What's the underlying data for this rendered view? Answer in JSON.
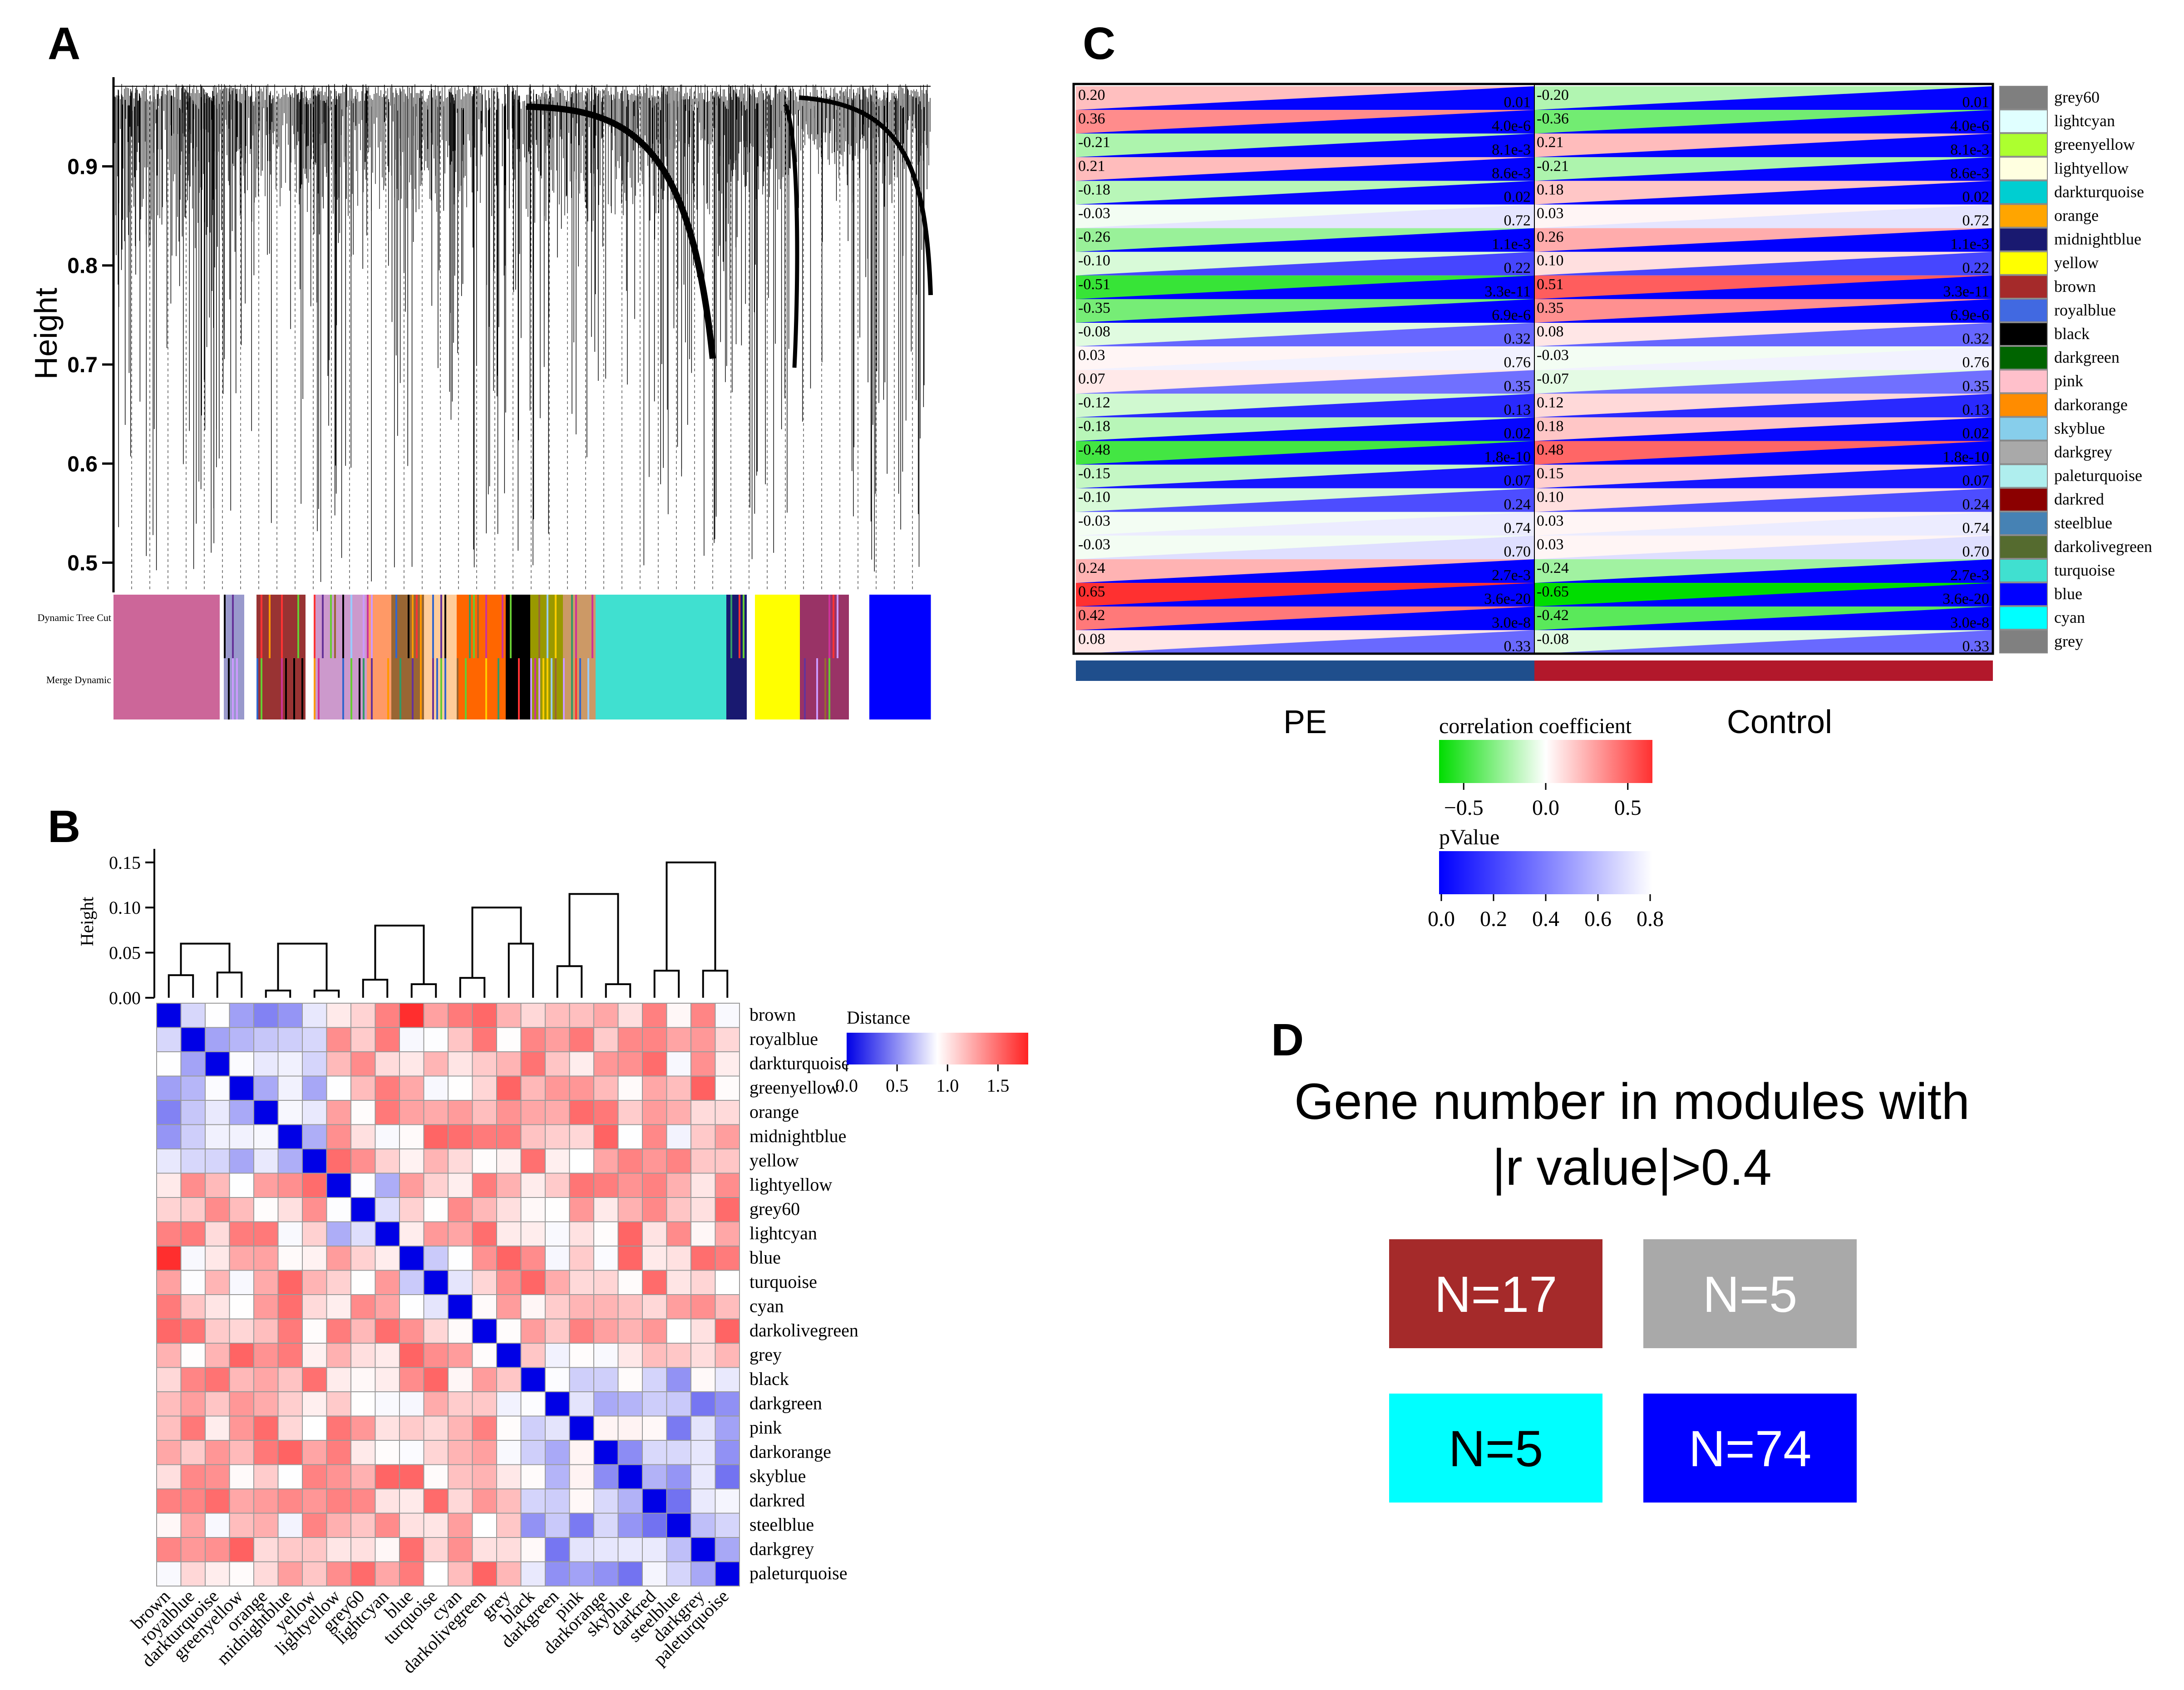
{
  "panels": {
    "a": {
      "letter": "A",
      "ylabel": "Height",
      "yticks": [
        0.5,
        0.6,
        0.7,
        0.8,
        0.9
      ],
      "ylim": [
        0.47,
        0.99
      ],
      "row_labels": [
        "Dynamic Tree Cut",
        "Merge Dynamic"
      ],
      "blocks": [
        {
          "from": 0.0,
          "to": 0.13,
          "color": "#cc6699"
        },
        {
          "from": 0.13,
          "to": 0.135,
          "color": "#ffffff"
        },
        {
          "from": 0.135,
          "to": 0.16,
          "color": "#9999cc"
        },
        {
          "from": 0.16,
          "to": 0.175,
          "color": "#ffffff"
        },
        {
          "from": 0.175,
          "to": 0.235,
          "color": "#993333"
        },
        {
          "from": 0.235,
          "to": 0.245,
          "color": "#ffffff"
        },
        {
          "from": 0.245,
          "to": 0.31,
          "color": "#cc99cc"
        },
        {
          "from": 0.31,
          "to": 0.34,
          "color": "#ff9966"
        },
        {
          "from": 0.34,
          "to": 0.38,
          "color": "#996633"
        },
        {
          "from": 0.38,
          "to": 0.42,
          "color": "#ffcc99"
        },
        {
          "from": 0.42,
          "to": 0.48,
          "color": "#ff6600"
        },
        {
          "from": 0.48,
          "to": 0.51,
          "color": "#000000"
        },
        {
          "from": 0.51,
          "to": 0.55,
          "color": "#999900"
        },
        {
          "from": 0.55,
          "to": 0.59,
          "color": "#cc9966"
        },
        {
          "from": 0.59,
          "to": 0.75,
          "color": "#40e0d0"
        },
        {
          "from": 0.75,
          "to": 0.775,
          "color": "#191970"
        },
        {
          "from": 0.775,
          "to": 0.785,
          "color": "#ffffff"
        },
        {
          "from": 0.785,
          "to": 0.84,
          "color": "#ffff00"
        },
        {
          "from": 0.84,
          "to": 0.9,
          "color": "#993366"
        },
        {
          "from": 0.9,
          "to": 0.925,
          "color": "#ffffff"
        },
        {
          "from": 0.925,
          "to": 1.0,
          "color": "#0000ff"
        }
      ]
    },
    "b": {
      "letter": "B",
      "ylabel": "Height",
      "yticks": [
        0.0,
        0.05,
        0.1,
        0.15
      ],
      "legend_title": "Distance",
      "legend_ticks": [
        0.0,
        0.5,
        1.0,
        1.5
      ],
      "legend_max": 1.8,
      "modules": [
        "brown",
        "royalblue",
        "darkturquoise",
        "greenyellow",
        "orange",
        "midnightblue",
        "yellow",
        "lightyellow",
        "grey60",
        "lightcyan",
        "blue",
        "turquoise",
        "cyan",
        "darkolivegreen",
        "grey",
        "black",
        "darkgreen",
        "pink",
        "darkorange",
        "skyblue",
        "darkred",
        "steelblue",
        "darkgrey",
        "paleturquoise"
      ],
      "dendrogram_merges": [
        [
          0,
          1,
          0.025
        ],
        [
          2,
          3,
          0.028
        ],
        [
          4,
          5,
          0.008
        ],
        [
          6,
          7,
          0.008
        ],
        [
          8,
          9,
          0.02
        ],
        [
          10,
          11,
          0.015
        ],
        [
          12,
          13,
          0.022
        ],
        [
          14,
          15,
          0.06
        ],
        [
          16,
          17,
          0.035
        ],
        [
          18,
          19,
          0.015
        ],
        [
          20,
          21,
          0.03
        ],
        [
          22,
          23,
          0.03
        ],
        [
          24,
          25,
          0.06
        ],
        [
          26,
          27,
          0.06
        ],
        [
          28,
          29,
          0.08
        ],
        [
          30,
          31,
          0.1
        ],
        [
          32,
          33,
          0.115
        ],
        [
          34,
          35,
          0.15
        ]
      ]
    },
    "c": {
      "letter": "C",
      "columns": [
        "PE",
        "Control"
      ],
      "column_colors": [
        "#1f4e8c",
        "#b2182b"
      ],
      "cor_legend_title": "correlation coefficient",
      "cor_ticks": [
        "−0.5",
        "0.0",
        "0.5"
      ],
      "p_legend_title": "pValue",
      "p_ticks": [
        "0.0",
        "0.2",
        "0.4",
        "0.6",
        "0.8"
      ]
    },
    "d": {
      "letter": "D",
      "title_line1": "Gene number in modules with",
      "title_line2": "|r value|>0.4",
      "boxes": [
        {
          "label": "N=17",
          "color": "#a52a2a",
          "text_color": "#ffffff"
        },
        {
          "label": "N=5",
          "color": "#a9a9a9",
          "text_color": "#ffffff"
        },
        {
          "label": "N=5",
          "color": "#00ffff",
          "text_color": "#000000"
        },
        {
          "label": "N=74",
          "color": "#0000ff",
          "text_color": "#ffffff"
        }
      ]
    }
  },
  "chart_data": [
    {
      "type": "dendrogram",
      "ylabel": "Height",
      "ylim": [
        0.47,
        0.99
      ],
      "row_labels": [
        "Dynamic Tree Cut",
        "Merge Dynamic"
      ]
    },
    {
      "type": "heatmap",
      "legend_title": "Distance",
      "categories": [
        "brown",
        "royalblue",
        "darkturquoise",
        "greenyellow",
        "orange",
        "midnightblue",
        "yellow",
        "lightyellow",
        "grey60",
        "lightcyan",
        "blue",
        "turquoise",
        "cyan",
        "darkolivegreen",
        "grey",
        "black",
        "darkgreen",
        "pink",
        "darkorange",
        "skyblue",
        "darkred",
        "steelblue",
        "darkgrey",
        "paleturquoise"
      ],
      "value_range": [
        0,
        1.8
      ],
      "dendrogram_ylim": [
        0,
        0.17
      ]
    },
    {
      "type": "heatmap",
      "columns": [
        "PE",
        "Control"
      ],
      "rows": [
        {
          "module": "grey60",
          "color": "#7f7f7f",
          "r": 0.2,
          "p": "0.01",
          "pv": 0.01
        },
        {
          "module": "lightcyan",
          "color": "#e0ffff",
          "r": 0.36,
          "p": "4.0e-6",
          "pv": 0.0
        },
        {
          "module": "greenyellow",
          "color": "#adff2f",
          "r": -0.21,
          "p": "8.1e-3",
          "pv": 0.008
        },
        {
          "module": "lightyellow",
          "color": "#ffffe0",
          "r": 0.21,
          "p": "8.6e-3",
          "pv": 0.009
        },
        {
          "module": "darkturquoise",
          "color": "#00ced1",
          "r": -0.18,
          "p": "0.02",
          "pv": 0.02
        },
        {
          "module": "orange",
          "color": "#ffa500",
          "r": -0.03,
          "p": "0.72",
          "pv": 0.72
        },
        {
          "module": "midnightblue",
          "color": "#191970",
          "r": -0.26,
          "p": "1.1e-3",
          "pv": 0.001
        },
        {
          "module": "yellow",
          "color": "#ffff00",
          "r": -0.1,
          "p": "0.22",
          "pv": 0.22
        },
        {
          "module": "brown",
          "color": "#a52a2a",
          "r": -0.51,
          "p": "3.3e-11",
          "pv": 0.0
        },
        {
          "module": "royalblue",
          "color": "#4169e1",
          "r": -0.35,
          "p": "6.9e-6",
          "pv": 0.0
        },
        {
          "module": "black",
          "color": "#000000",
          "r": -0.08,
          "p": "0.32",
          "pv": 0.32
        },
        {
          "module": "darkgreen",
          "color": "#006400",
          "r": 0.03,
          "p": "0.76",
          "pv": 0.76
        },
        {
          "module": "pink",
          "color": "#ffc0cb",
          "r": 0.07,
          "p": "0.35",
          "pv": 0.35
        },
        {
          "module": "darkorange",
          "color": "#ff8c00",
          "r": -0.12,
          "p": "0.13",
          "pv": 0.13
        },
        {
          "module": "skyblue",
          "color": "#87ceeb",
          "r": -0.18,
          "p": "0.02",
          "pv": 0.02
        },
        {
          "module": "darkgrey",
          "color": "#a9a9a9",
          "r": -0.48,
          "p": "1.8e-10",
          "pv": 0.0
        },
        {
          "module": "paleturquoise",
          "color": "#afeeee",
          "r": -0.15,
          "p": "0.07",
          "pv": 0.07
        },
        {
          "module": "darkred",
          "color": "#8b0000",
          "r": -0.1,
          "p": "0.24",
          "pv": 0.24
        },
        {
          "module": "steelblue",
          "color": "#4682b4",
          "r": -0.03,
          "p": "0.74",
          "pv": 0.74
        },
        {
          "module": "darkolivegreen",
          "color": "#556b2f",
          "r": -0.03,
          "p": "0.70",
          "pv": 0.7
        },
        {
          "module": "turquoise",
          "color": "#40e0d0",
          "r": 0.24,
          "p": "2.7e-3",
          "pv": 0.003
        },
        {
          "module": "blue",
          "color": "#0000ff",
          "r": 0.65,
          "p": "3.6e-20",
          "pv": 0.0
        },
        {
          "module": "cyan",
          "color": "#00ffff",
          "r": 0.42,
          "p": "3.0e-8",
          "pv": 0.0
        },
        {
          "module": "grey",
          "color": "#808080",
          "r": 0.08,
          "p": "0.33",
          "pv": 0.33
        }
      ],
      "cor_legend_title": "correlation coefficient",
      "p_legend_title": "pValue"
    },
    {
      "type": "table",
      "title": "Gene number in modules with |r value|>0.4",
      "cells": [
        "N=17",
        "N=5",
        "N=5",
        "N=74"
      ]
    }
  ]
}
